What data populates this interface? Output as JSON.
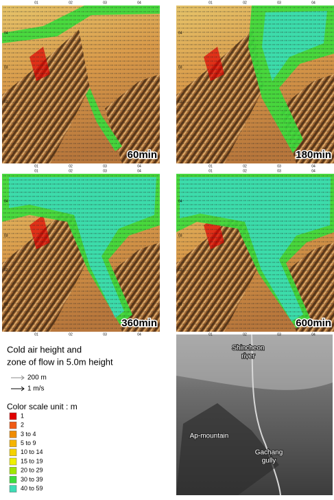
{
  "panels": [
    {
      "label": "60min"
    },
    {
      "label": "180min"
    },
    {
      "label": "360min"
    },
    {
      "label": "600min"
    }
  ],
  "axis_ticks": {
    "x": [
      "01",
      "02",
      "03",
      "04"
    ],
    "y": [
      "04",
      "03",
      "02",
      "01"
    ]
  },
  "legend": {
    "title_lines": [
      "Cold air height and",
      "zone of flow in 5.0m height"
    ],
    "scale_items": [
      {
        "label": "200 m"
      },
      {
        "label": "1 m/s"
      }
    ],
    "color_title": "Color scale unit : m",
    "colors": [
      {
        "label": "1",
        "color": "#e00000"
      },
      {
        "label": "2",
        "color": "#f05a14"
      },
      {
        "label": "3 to 4",
        "color": "#f08c00"
      },
      {
        "label": "5 to 9",
        "color": "#f5b400"
      },
      {
        "label": "10 to 14",
        "color": "#f5d200"
      },
      {
        "label": "15 to 19",
        "color": "#f0f000"
      },
      {
        "label": "20 to 29",
        "color": "#a0e600"
      },
      {
        "label": "30 to 39",
        "color": "#3cdc3c"
      },
      {
        "label": "40 to 59",
        "color": "#3cdcb4"
      }
    ]
  },
  "photo": {
    "labels": [
      {
        "lines": [
          "Shincheon",
          "river"
        ]
      },
      {
        "lines": [
          "Ap-mountain"
        ]
      },
      {
        "lines": [
          "Gachang",
          "gully"
        ]
      }
    ]
  }
}
